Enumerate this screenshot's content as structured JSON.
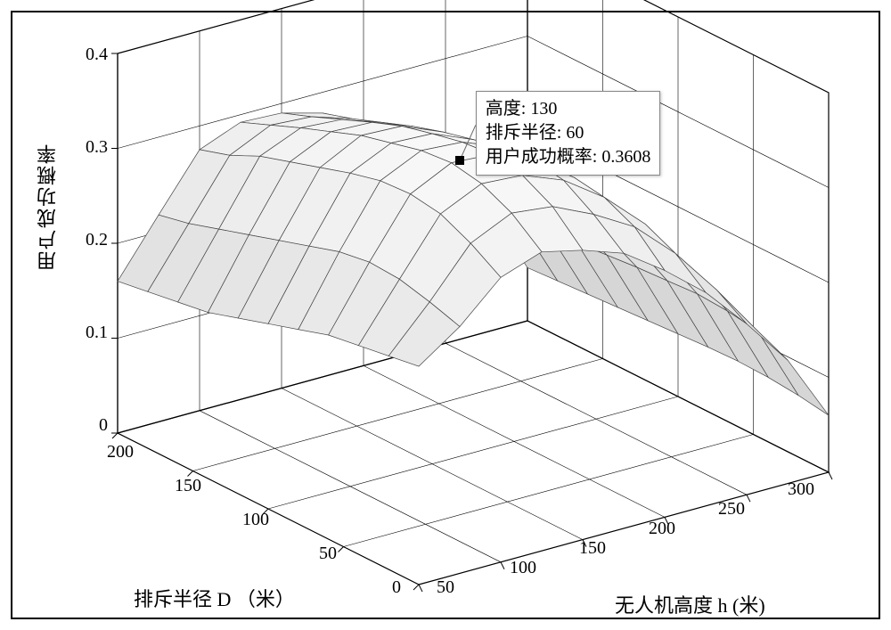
{
  "chart": {
    "type": "surface-3d",
    "background_color": "#ffffff",
    "grid_color": "#000000",
    "surface_edge_color": "#444444",
    "surface_fill_color": "#f5f5f5",
    "frame_color": "#000000",
    "font_family": "SimSun",
    "tick_fontsize": 20,
    "label_fontsize": 22,
    "x_axis": {
      "label": "无人机高度 h (米)",
      "min": 50,
      "max": 300,
      "ticks": [
        50,
        100,
        150,
        200,
        250,
        300
      ]
    },
    "y_axis": {
      "label": "排斥半径 D （米）",
      "min": 0,
      "max": 200,
      "ticks": [
        0,
        50,
        100,
        150,
        200
      ]
    },
    "z_axis": {
      "label": "用户成功概率",
      "min": 0,
      "max": 0.4,
      "ticks": [
        0,
        0.1,
        0.2,
        0.3,
        0.4
      ]
    },
    "x_values": [
      50,
      75,
      100,
      125,
      150,
      175,
      200,
      225,
      250,
      275,
      300
    ],
    "y_values": [
      0,
      20,
      40,
      60,
      80,
      100,
      120,
      140,
      160,
      180,
      200
    ],
    "z_grid": [
      [
        0.23,
        0.26,
        0.3,
        0.315,
        0.305,
        0.29,
        0.26,
        0.225,
        0.18,
        0.13,
        0.06
      ],
      [
        0.225,
        0.27,
        0.32,
        0.34,
        0.335,
        0.315,
        0.29,
        0.25,
        0.2,
        0.145,
        0.065
      ],
      [
        0.22,
        0.278,
        0.335,
        0.355,
        0.352,
        0.335,
        0.305,
        0.265,
        0.21,
        0.15,
        0.068
      ],
      [
        0.215,
        0.28,
        0.34,
        0.361,
        0.358,
        0.34,
        0.31,
        0.268,
        0.212,
        0.152,
        0.069
      ],
      [
        0.205,
        0.275,
        0.338,
        0.358,
        0.355,
        0.338,
        0.308,
        0.266,
        0.21,
        0.15,
        0.068
      ],
      [
        0.195,
        0.265,
        0.33,
        0.35,
        0.348,
        0.33,
        0.3,
        0.26,
        0.205,
        0.148,
        0.066
      ],
      [
        0.185,
        0.255,
        0.32,
        0.342,
        0.34,
        0.322,
        0.292,
        0.252,
        0.2,
        0.145,
        0.064
      ],
      [
        0.175,
        0.245,
        0.31,
        0.33,
        0.328,
        0.312,
        0.283,
        0.245,
        0.195,
        0.142,
        0.062
      ],
      [
        0.17,
        0.235,
        0.3,
        0.318,
        0.315,
        0.3,
        0.275,
        0.24,
        0.192,
        0.14,
        0.06
      ],
      [
        0.165,
        0.225,
        0.285,
        0.305,
        0.302,
        0.288,
        0.266,
        0.232,
        0.188,
        0.137,
        0.058
      ],
      [
        0.16,
        0.218,
        0.275,
        0.292,
        0.29,
        0.278,
        0.258,
        0.225,
        0.183,
        0.134,
        0.056
      ]
    ],
    "marker_point": {
      "h": 130,
      "D": 60,
      "p": 0.3608
    },
    "marker_color": "#000000"
  },
  "tooltip": {
    "line1_label": "高度",
    "line1_value": "130",
    "line2_label": "排斥半径",
    "line2_value": "60",
    "line3_label": "用户成功概率",
    "line3_value": "0.3608"
  }
}
